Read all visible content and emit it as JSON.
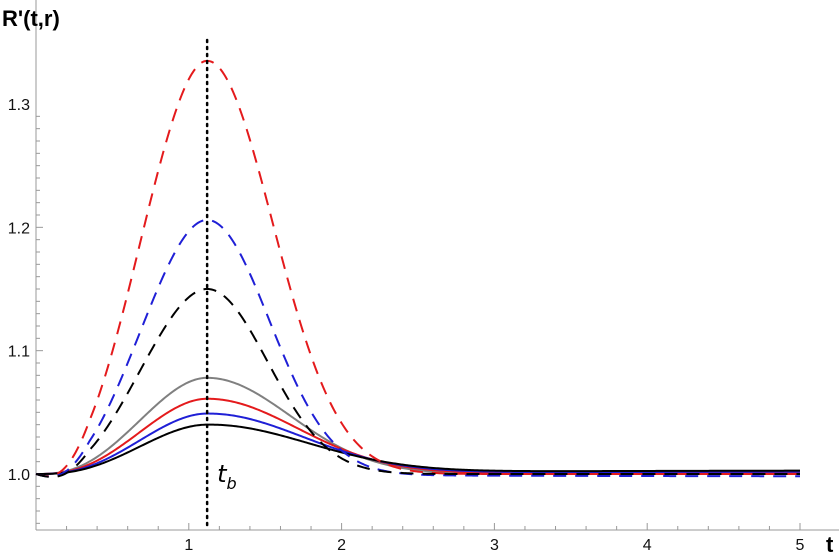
{
  "chart_data": {
    "type": "line",
    "title": "",
    "xlabel": "t",
    "ylabel": "R'(t,r)",
    "xlim": [
      0,
      5
    ],
    "ylim": [
      0.955,
      1.345
    ],
    "x_ticks": [
      "1",
      "2",
      "3",
      "4",
      "5"
    ],
    "y_ticks": [
      "1.0",
      "1.1",
      "1.2",
      "1.3"
    ],
    "annotation": {
      "label": "t",
      "subscript": "b",
      "x": 1.12
    },
    "series": [
      {
        "name": "red dashed",
        "color": "#e41a1c",
        "style": "dashed",
        "peak": 1.335,
        "peak_t": 1.12,
        "width": 0.38,
        "end": 1.0,
        "shape": "bump"
      },
      {
        "name": "blue dashed",
        "color": "#1f1fd6",
        "style": "dashed",
        "peak": 1.206,
        "peak_t": 1.12,
        "width": 0.36,
        "end": 0.998,
        "shape": "bump"
      },
      {
        "name": "black dashed",
        "color": "#000000",
        "style": "dashed",
        "peak": 1.15,
        "peak_t": 1.12,
        "width": 0.35,
        "end": 1.0,
        "shape": "bump"
      },
      {
        "name": "gray solid",
        "color": "#808080",
        "style": "solid",
        "peak": 1.078,
        "peak_t": 1.12,
        "width": 0.48,
        "end": 1.0,
        "shape": "bump"
      },
      {
        "name": "red solid",
        "color": "#e41a1c",
        "style": "solid",
        "peak": 1.061,
        "peak_t": 1.12,
        "width": 0.52,
        "end": 1.001,
        "shape": "bump"
      },
      {
        "name": "blue solid",
        "color": "#1f1fd6",
        "style": "solid",
        "peak": 1.049,
        "peak_t": 1.12,
        "width": 0.55,
        "end": 1.002,
        "shape": "bump"
      },
      {
        "name": "black solid",
        "color": "#000000",
        "style": "solid",
        "peak": 1.04,
        "peak_t": 1.12,
        "width": 0.58,
        "end": 1.003,
        "shape": "bump"
      }
    ]
  }
}
